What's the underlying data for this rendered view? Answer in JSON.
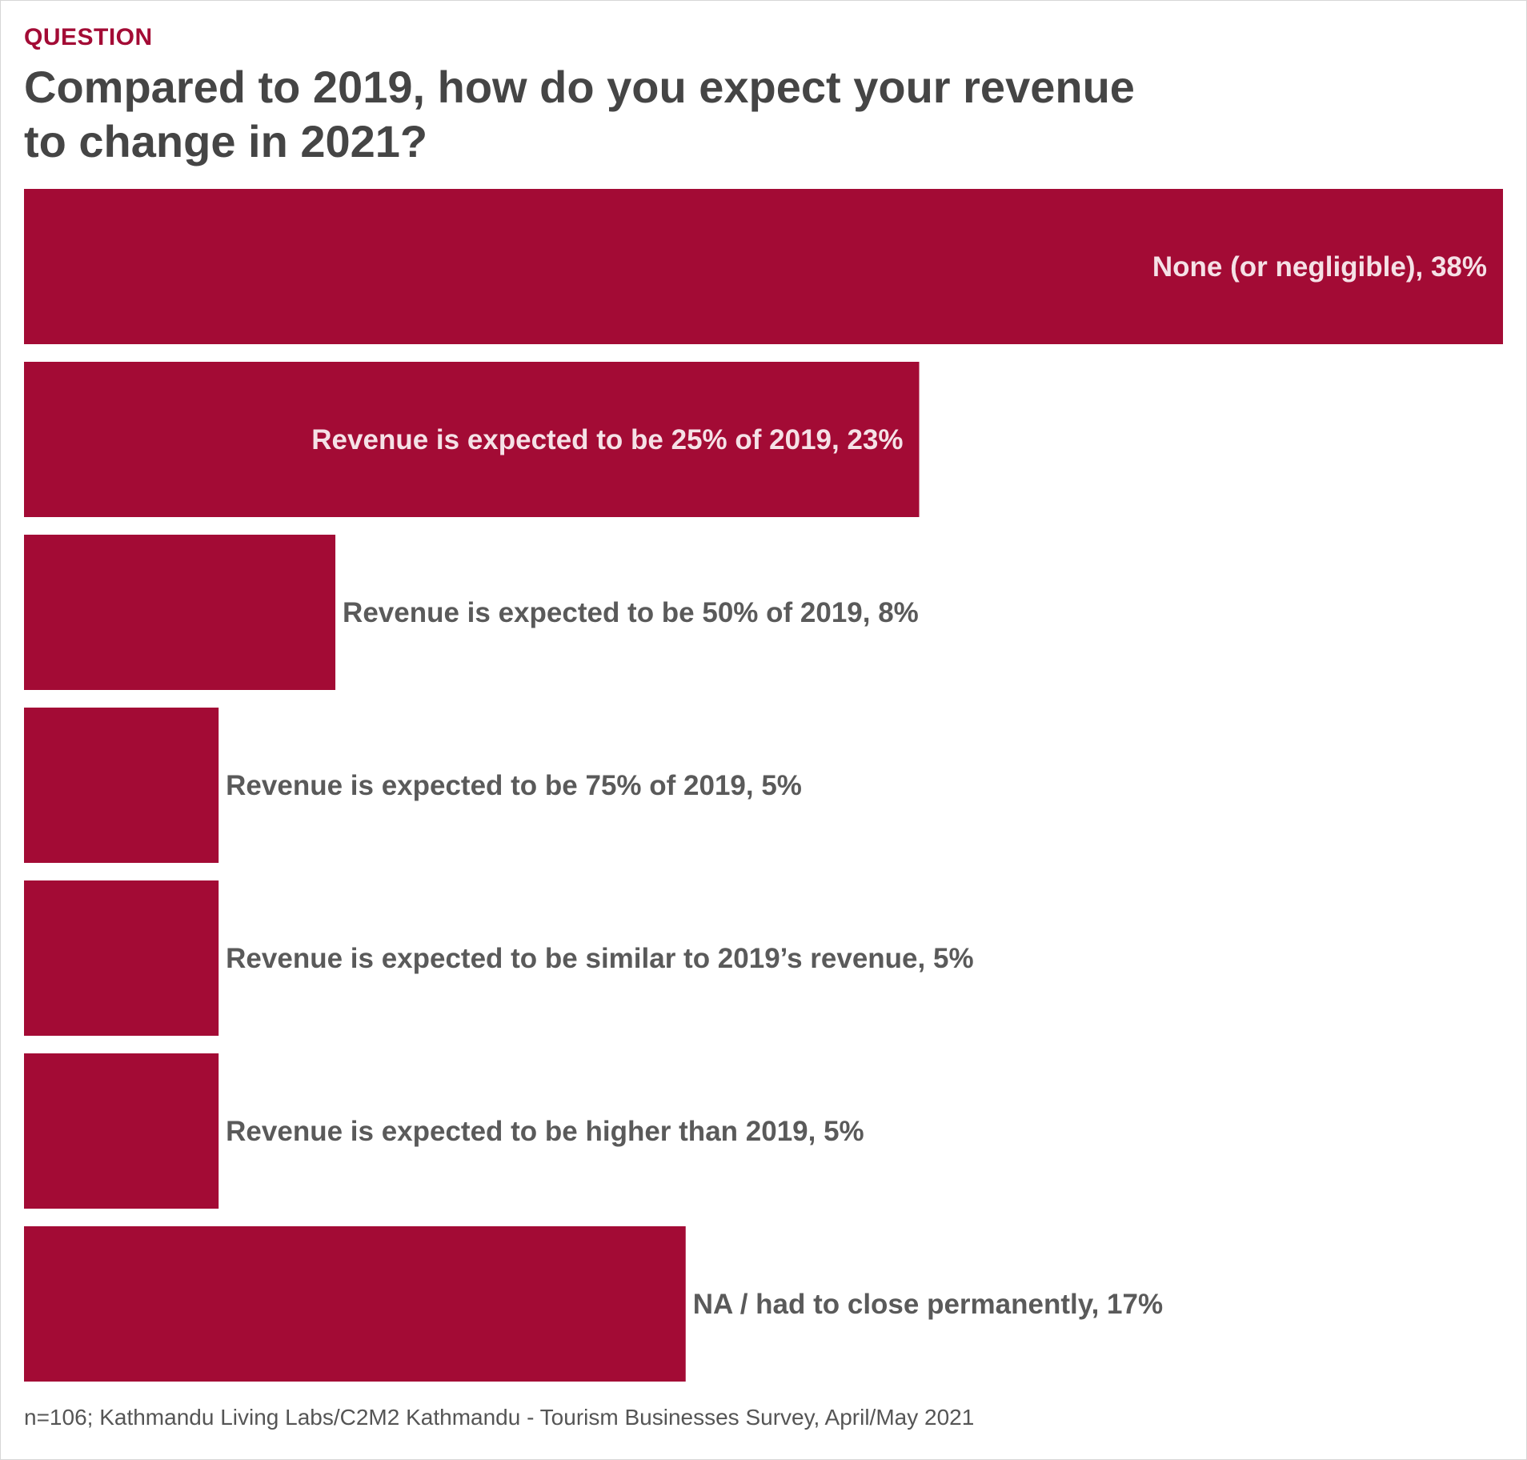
{
  "header": {
    "eyebrow": "QUESTION",
    "title": "Compared to 2019, how do you expect your revenue to change in 2021?"
  },
  "footnote": "n=106; Kathmandu Living Labs/C2M2 Kathmandu - Tourism Businesses Survey, April/May 2021",
  "colors": {
    "bar": "#a30b35",
    "label_inside": "#f5e1e6",
    "label_outside": "#5a5a5a"
  },
  "chart_data": {
    "type": "bar",
    "orientation": "horizontal",
    "categories": [
      "None (or negligible)",
      "Revenue is expected to be 25% of 2019",
      "Revenue is expected to be 50% of 2019",
      "Revenue is expected to be 75% of 2019",
      "Revenue is expected to be similar to 2019’s revenue",
      "Revenue is expected to be higher than 2019",
      "NA / had to close permanently"
    ],
    "values": [
      38,
      23,
      8,
      5,
      5,
      5,
      17
    ],
    "unit": "%",
    "data_labels": [
      "None (or negligible), 38%",
      "Revenue is expected to be 25% of 2019, 23%",
      "Revenue is expected to be 50% of 2019, 8%",
      "Revenue is expected to be 75% of 2019, 5%",
      "Revenue is expected to be similar to 2019’s revenue, 5%",
      "Revenue is expected to be higher than 2019, 5%",
      "NA / had to close permanently, 17%"
    ],
    "xlim": [
      0,
      38
    ],
    "grid": false,
    "legend": "none"
  }
}
